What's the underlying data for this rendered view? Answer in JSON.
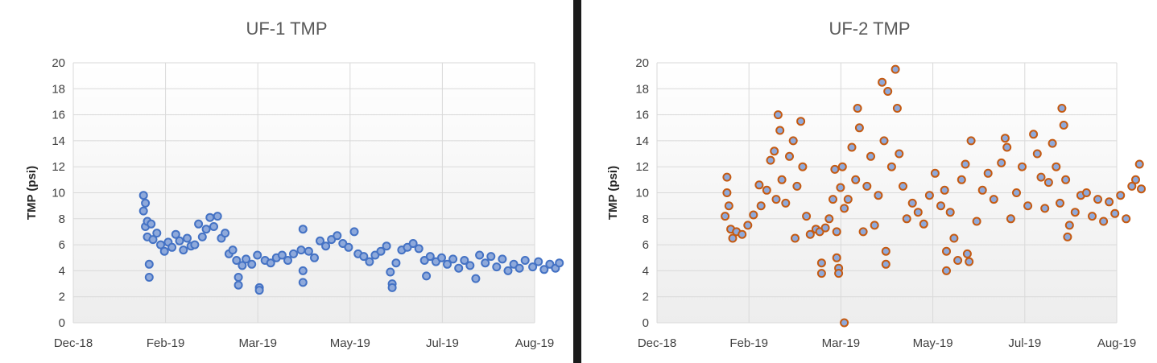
{
  "chart_data": [
    {
      "type": "scatter",
      "title": "UF-1 TMP",
      "xlabel": "",
      "ylabel": "TMP (psi)",
      "ylim": [
        0,
        20
      ],
      "yticks": [
        "0",
        "2",
        "4",
        "6",
        "8",
        "10",
        "12",
        "14",
        "16",
        "18",
        "20"
      ],
      "xlim": [
        "2018-12-01",
        "2019-08-01"
      ],
      "xticks": [
        "Dec-18",
        "Feb-19",
        "Mar-19",
        "May-19",
        "Jul-19",
        "Aug-19"
      ],
      "grid": true,
      "marker_fill": "#8EA9DB",
      "marker_stroke": "#4472C4",
      "points": [
        [
          "2019-01-07",
          9.8
        ],
        [
          "2019-01-07",
          8.6
        ],
        [
          "2019-01-08",
          9.2
        ],
        [
          "2019-01-08",
          7.4
        ],
        [
          "2019-01-09",
          7.8
        ],
        [
          "2019-01-09",
          6.6
        ],
        [
          "2019-01-10",
          3.5
        ],
        [
          "2019-01-10",
          4.5
        ],
        [
          "2019-01-11",
          7.6
        ],
        [
          "2019-01-12",
          6.4
        ],
        [
          "2019-01-14",
          6.9
        ],
        [
          "2019-01-16",
          6.0
        ],
        [
          "2019-01-18",
          5.5
        ],
        [
          "2019-01-20",
          6.2
        ],
        [
          "2019-01-22",
          5.8
        ],
        [
          "2019-01-24",
          6.8
        ],
        [
          "2019-01-26",
          6.3
        ],
        [
          "2019-01-28",
          5.6
        ],
        [
          "2019-01-30",
          6.5
        ],
        [
          "2019-02-01",
          5.9
        ],
        [
          "2019-02-03",
          6.0
        ],
        [
          "2019-02-05",
          7.6
        ],
        [
          "2019-02-07",
          6.6
        ],
        [
          "2019-02-09",
          7.2
        ],
        [
          "2019-02-11",
          8.1
        ],
        [
          "2019-02-13",
          7.4
        ],
        [
          "2019-02-15",
          8.2
        ],
        [
          "2019-02-17",
          6.5
        ],
        [
          "2019-02-19",
          6.9
        ],
        [
          "2019-02-21",
          5.3
        ],
        [
          "2019-02-23",
          5.6
        ],
        [
          "2019-02-25",
          4.8
        ],
        [
          "2019-02-26",
          3.5
        ],
        [
          "2019-02-26",
          2.9
        ],
        [
          "2019-02-28",
          4.4
        ],
        [
          "2019-03-02",
          4.9
        ],
        [
          "2019-03-05",
          4.5
        ],
        [
          "2019-03-08",
          5.2
        ],
        [
          "2019-03-09",
          2.7
        ],
        [
          "2019-03-09",
          2.5
        ],
        [
          "2019-03-12",
          4.8
        ],
        [
          "2019-03-15",
          4.6
        ],
        [
          "2019-03-18",
          5.0
        ],
        [
          "2019-03-21",
          5.2
        ],
        [
          "2019-03-24",
          4.8
        ],
        [
          "2019-03-27",
          5.3
        ],
        [
          "2019-03-31",
          5.6
        ],
        [
          "2019-04-01",
          3.1
        ],
        [
          "2019-04-01",
          4.0
        ],
        [
          "2019-04-01",
          7.2
        ],
        [
          "2019-04-04",
          5.5
        ],
        [
          "2019-04-07",
          5.0
        ],
        [
          "2019-04-10",
          6.3
        ],
        [
          "2019-04-13",
          5.9
        ],
        [
          "2019-04-16",
          6.4
        ],
        [
          "2019-04-19",
          6.7
        ],
        [
          "2019-04-22",
          6.1
        ],
        [
          "2019-04-25",
          5.8
        ],
        [
          "2019-04-28",
          7.0
        ],
        [
          "2019-04-30",
          5.3
        ],
        [
          "2019-05-03",
          5.1
        ],
        [
          "2019-05-06",
          4.7
        ],
        [
          "2019-05-09",
          5.2
        ],
        [
          "2019-05-12",
          5.5
        ],
        [
          "2019-05-15",
          5.9
        ],
        [
          "2019-05-17",
          3.9
        ],
        [
          "2019-05-18",
          3.0
        ],
        [
          "2019-05-18",
          2.7
        ],
        [
          "2019-05-20",
          4.6
        ],
        [
          "2019-05-23",
          5.6
        ],
        [
          "2019-05-26",
          5.8
        ],
        [
          "2019-05-29",
          6.1
        ],
        [
          "2019-06-01",
          5.7
        ],
        [
          "2019-06-04",
          4.8
        ],
        [
          "2019-06-05",
          3.6
        ],
        [
          "2019-06-07",
          5.1
        ],
        [
          "2019-06-10",
          4.7
        ],
        [
          "2019-06-13",
          5.0
        ],
        [
          "2019-06-16",
          4.5
        ],
        [
          "2019-06-19",
          4.9
        ],
        [
          "2019-06-22",
          4.2
        ],
        [
          "2019-06-25",
          4.8
        ],
        [
          "2019-06-28",
          4.4
        ],
        [
          "2019-07-01",
          3.4
        ],
        [
          "2019-07-03",
          5.2
        ],
        [
          "2019-07-06",
          4.6
        ],
        [
          "2019-07-09",
          5.1
        ],
        [
          "2019-07-12",
          4.3
        ],
        [
          "2019-07-15",
          4.9
        ],
        [
          "2019-07-18",
          4.0
        ],
        [
          "2019-07-21",
          4.5
        ],
        [
          "2019-07-24",
          4.2
        ],
        [
          "2019-07-27",
          4.8
        ],
        [
          "2019-07-31",
          4.3
        ],
        [
          "2019-08-03",
          4.7
        ],
        [
          "2019-08-06",
          4.1
        ],
        [
          "2019-08-09",
          4.5
        ],
        [
          "2019-08-12",
          4.2
        ],
        [
          "2019-08-14",
          4.6
        ]
      ]
    },
    {
      "type": "scatter",
      "title": "UF-2 TMP",
      "xlabel": "",
      "ylabel": "TMP (psi)",
      "ylim": [
        0,
        20
      ],
      "yticks": [
        "0",
        "2",
        "4",
        "6",
        "8",
        "10",
        "12",
        "14",
        "16",
        "18",
        "20"
      ],
      "xlim": [
        "2018-12-01",
        "2019-08-01"
      ],
      "xticks": [
        "Dec-18",
        "Feb-19",
        "Mar-19",
        "May-19",
        "Jul-19",
        "Aug-19"
      ],
      "grid": true,
      "marker_fill": "#8EA9DB",
      "marker_stroke": "#C55A11",
      "points": [
        [
          "2019-01-06",
          8.2
        ],
        [
          "2019-01-07",
          11.2
        ],
        [
          "2019-01-07",
          10.0
        ],
        [
          "2019-01-08",
          9.0
        ],
        [
          "2019-01-09",
          7.2
        ],
        [
          "2019-01-10",
          6.5
        ],
        [
          "2019-01-12",
          7.0
        ],
        [
          "2019-01-15",
          6.8
        ],
        [
          "2019-01-18",
          7.5
        ],
        [
          "2019-01-21",
          8.3
        ],
        [
          "2019-01-24",
          10.6
        ],
        [
          "2019-01-25",
          9.0
        ],
        [
          "2019-01-28",
          10.2
        ],
        [
          "2019-01-30",
          12.5
        ],
        [
          "2019-02-01",
          13.2
        ],
        [
          "2019-02-02",
          9.5
        ],
        [
          "2019-02-03",
          16.0
        ],
        [
          "2019-02-04",
          14.8
        ],
        [
          "2019-02-05",
          11.0
        ],
        [
          "2019-02-07",
          9.2
        ],
        [
          "2019-02-09",
          12.8
        ],
        [
          "2019-02-11",
          14.0
        ],
        [
          "2019-02-12",
          6.5
        ],
        [
          "2019-02-13",
          10.5
        ],
        [
          "2019-02-15",
          15.5
        ],
        [
          "2019-02-16",
          12.0
        ],
        [
          "2019-02-18",
          8.2
        ],
        [
          "2019-02-20",
          6.8
        ],
        [
          "2019-02-23",
          7.2
        ],
        [
          "2019-02-25",
          7.0
        ],
        [
          "2019-02-26",
          4.6
        ],
        [
          "2019-02-26",
          3.8
        ],
        [
          "2019-02-28",
          7.3
        ],
        [
          "2019-03-02",
          8.0
        ],
        [
          "2019-03-04",
          9.5
        ],
        [
          "2019-03-05",
          11.8
        ],
        [
          "2019-03-06",
          7.0
        ],
        [
          "2019-03-06",
          5.0
        ],
        [
          "2019-03-07",
          4.2
        ],
        [
          "2019-03-07",
          3.8
        ],
        [
          "2019-03-08",
          10.4
        ],
        [
          "2019-03-09",
          12.0
        ],
        [
          "2019-03-10",
          8.8
        ],
        [
          "2019-03-10",
          0.0
        ],
        [
          "2019-03-12",
          9.5
        ],
        [
          "2019-03-14",
          13.5
        ],
        [
          "2019-03-16",
          11.0
        ],
        [
          "2019-03-17",
          16.5
        ],
        [
          "2019-03-18",
          15.0
        ],
        [
          "2019-03-20",
          7.0
        ],
        [
          "2019-03-22",
          10.5
        ],
        [
          "2019-03-24",
          12.8
        ],
        [
          "2019-03-26",
          7.5
        ],
        [
          "2019-03-28",
          9.8
        ],
        [
          "2019-03-30",
          18.5
        ],
        [
          "2019-03-31",
          14.0
        ],
        [
          "2019-04-01",
          5.5
        ],
        [
          "2019-04-01",
          4.5
        ],
        [
          "2019-04-02",
          17.8
        ],
        [
          "2019-04-04",
          12.0
        ],
        [
          "2019-04-06",
          19.5
        ],
        [
          "2019-04-07",
          16.5
        ],
        [
          "2019-04-08",
          13.0
        ],
        [
          "2019-04-10",
          10.5
        ],
        [
          "2019-04-12",
          8.0
        ],
        [
          "2019-04-15",
          9.2
        ],
        [
          "2019-04-18",
          8.5
        ],
        [
          "2019-04-21",
          7.6
        ],
        [
          "2019-04-24",
          9.8
        ],
        [
          "2019-04-27",
          11.5
        ],
        [
          "2019-04-30",
          9.0
        ],
        [
          "2019-05-02",
          10.2
        ],
        [
          "2019-05-03",
          5.5
        ],
        [
          "2019-05-03",
          4.0
        ],
        [
          "2019-05-05",
          8.5
        ],
        [
          "2019-05-07",
          6.5
        ],
        [
          "2019-05-09",
          4.8
        ],
        [
          "2019-05-11",
          11.0
        ],
        [
          "2019-05-13",
          12.2
        ],
        [
          "2019-05-14",
          5.3
        ],
        [
          "2019-05-15",
          4.7
        ],
        [
          "2019-05-16",
          14.0
        ],
        [
          "2019-05-19",
          7.8
        ],
        [
          "2019-05-22",
          10.2
        ],
        [
          "2019-05-25",
          11.5
        ],
        [
          "2019-05-28",
          9.5
        ],
        [
          "2019-06-01",
          12.3
        ],
        [
          "2019-06-03",
          14.2
        ],
        [
          "2019-06-04",
          13.5
        ],
        [
          "2019-06-06",
          8.0
        ],
        [
          "2019-06-09",
          10.0
        ],
        [
          "2019-06-12",
          12.0
        ],
        [
          "2019-06-15",
          9.0
        ],
        [
          "2019-06-18",
          14.5
        ],
        [
          "2019-06-20",
          13.0
        ],
        [
          "2019-06-22",
          11.2
        ],
        [
          "2019-06-24",
          8.8
        ],
        [
          "2019-06-26",
          10.8
        ],
        [
          "2019-06-28",
          13.8
        ],
        [
          "2019-06-30",
          12.0
        ],
        [
          "2019-07-02",
          9.2
        ],
        [
          "2019-07-03",
          16.5
        ],
        [
          "2019-07-04",
          15.2
        ],
        [
          "2019-07-05",
          11.0
        ],
        [
          "2019-07-06",
          6.6
        ],
        [
          "2019-07-07",
          7.5
        ],
        [
          "2019-07-10",
          8.5
        ],
        [
          "2019-07-13",
          9.8
        ],
        [
          "2019-07-16",
          10.0
        ],
        [
          "2019-07-19",
          8.2
        ],
        [
          "2019-07-22",
          9.5
        ],
        [
          "2019-07-25",
          7.8
        ],
        [
          "2019-07-28",
          9.3
        ],
        [
          "2019-07-31",
          8.4
        ],
        [
          "2019-08-03",
          9.8
        ],
        [
          "2019-08-06",
          8.0
        ],
        [
          "2019-08-09",
          10.5
        ],
        [
          "2019-08-11",
          11.0
        ],
        [
          "2019-08-13",
          12.2
        ],
        [
          "2019-08-14",
          10.3
        ]
      ]
    }
  ]
}
